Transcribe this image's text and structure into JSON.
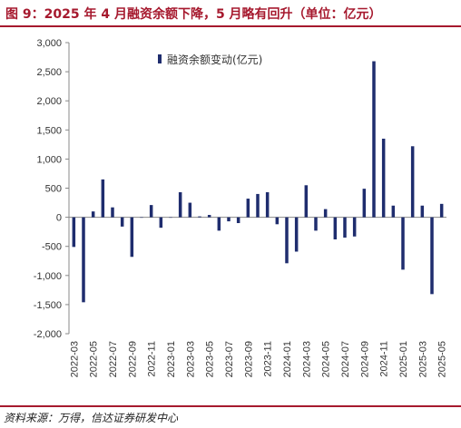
{
  "header": {
    "title": "图 9：2025 年 4 月融资余额下降，5 月略有回升（单位：亿元）"
  },
  "footer": {
    "source": "资料来源：万得，信达证券研发中心"
  },
  "colors": {
    "accent": "#a6192e",
    "bar": "#1f2d6e"
  },
  "chart_data": {
    "type": "bar",
    "title": "",
    "xlabel": "",
    "ylabel": "",
    "ylim": [
      -2000,
      3000
    ],
    "yticks": [
      -2000,
      -1500,
      -1000,
      -500,
      0,
      500,
      1000,
      1500,
      2000,
      2500,
      3000
    ],
    "ytick_labels": [
      "-2,000",
      "-1,500",
      "-1,000",
      "-500",
      "0",
      "500",
      "1,000",
      "1,500",
      "2,000",
      "2,500",
      "3,000"
    ],
    "legend_position": "top-center",
    "x_tick_labels": [
      "2022-03",
      "2022-05",
      "2022-07",
      "2022-09",
      "2022-11",
      "2023-01",
      "2023-03",
      "2023-05",
      "2023-07",
      "2023-09",
      "2023-11",
      "2024-01",
      "2024-03",
      "2024-05",
      "2024-07",
      "2024-09",
      "2024-11",
      "2025-01",
      "2025-03",
      "2025-05"
    ],
    "categories": [
      "2022-03",
      "2022-04",
      "2022-05",
      "2022-06",
      "2022-07",
      "2022-08",
      "2022-09",
      "2022-10",
      "2022-11",
      "2022-12",
      "2023-01",
      "2023-02",
      "2023-03",
      "2023-04",
      "2023-05",
      "2023-06",
      "2023-07",
      "2023-08",
      "2023-09",
      "2023-10",
      "2023-11",
      "2023-12",
      "2024-01",
      "2024-02",
      "2024-03",
      "2024-04",
      "2024-05",
      "2024-06",
      "2024-07",
      "2024-08",
      "2024-09",
      "2024-10",
      "2024-11",
      "2024-12",
      "2025-01",
      "2025-02",
      "2025-03",
      "2025-04",
      "2025-05"
    ],
    "series": [
      {
        "name": "融资余额变动(亿元)",
        "values": [
          -510,
          -1460,
          100,
          650,
          170,
          -160,
          -680,
          0,
          210,
          -180,
          0,
          430,
          250,
          15,
          40,
          -230,
          -70,
          -100,
          320,
          400,
          430,
          -120,
          -790,
          -590,
          550,
          -230,
          140,
          -380,
          -350,
          -330,
          490,
          2680,
          1350,
          200,
          -900,
          1220,
          200,
          -1320,
          230
        ]
      }
    ]
  }
}
